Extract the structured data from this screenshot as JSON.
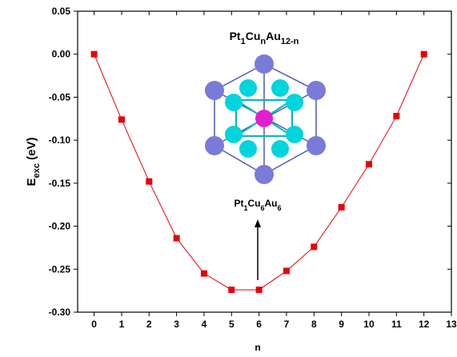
{
  "chart_data": {
    "type": "line",
    "x_label": "n",
    "y_label": [
      "E",
      "exc",
      " (eV)"
    ],
    "x": [
      0,
      1,
      2,
      3,
      4,
      5,
      6,
      7,
      8,
      9,
      10,
      11,
      12
    ],
    "series": [
      {
        "color": "#e8000b",
        "values": [
          0.0,
          -0.076,
          -0.148,
          -0.214,
          -0.255,
          -0.274,
          -0.274,
          -0.252,
          -0.224,
          -0.178,
          -0.128,
          -0.072,
          0.0
        ]
      }
    ],
    "xlim": [
      -0.6,
      13
    ],
    "ylim": [
      -0.3,
      0.05
    ],
    "xticks": [
      0,
      1,
      2,
      3,
      4,
      5,
      6,
      7,
      8,
      9,
      10,
      11,
      12,
      13
    ],
    "yticks": [
      {
        "value": 0.05,
        "label": "0.05"
      },
      {
        "value": 0,
        "label": "0.00"
      },
      {
        "value": -0.05,
        "label": "-0.05"
      },
      {
        "value": -0.1,
        "label": "-0.10"
      },
      {
        "value": -0.15,
        "label": "-0.15"
      },
      {
        "value": -0.2,
        "label": "-0.20"
      },
      {
        "value": -0.25,
        "label": "-0.25"
      },
      {
        "value": -0.3,
        "label": "-0.30"
      }
    ],
    "annotations": [
      {
        "parts": [
          [
            "Pt",
            "1"
          ],
          [
            "Cu",
            "n"
          ],
          [
            "Au",
            "12-n"
          ]
        ]
      },
      {
        "parts": [
          [
            "Pt",
            "1"
          ],
          [
            "Cu",
            "6"
          ],
          [
            "Au",
            "6"
          ]
        ]
      }
    ]
  }
}
